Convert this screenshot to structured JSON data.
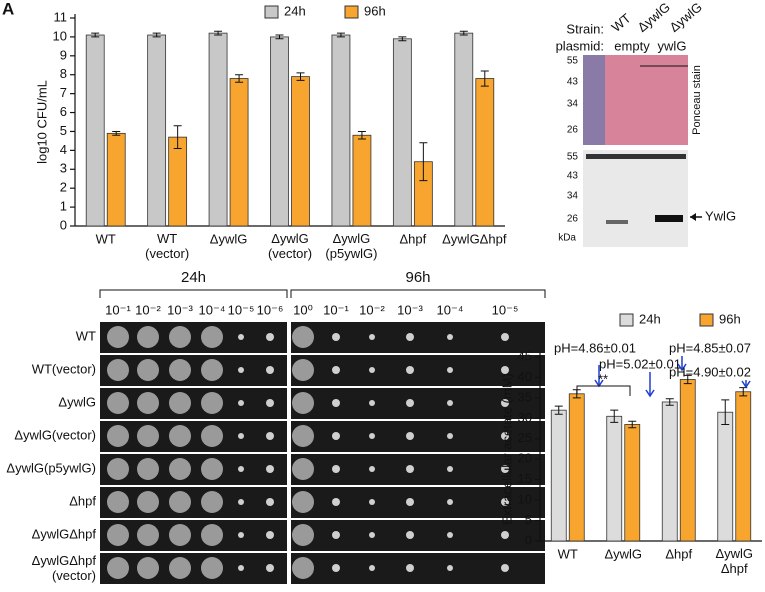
{
  "panel_labels": [
    "A"
  ],
  "chart_data": [
    {
      "type": "bar",
      "y_label": "log10 CFU/mL",
      "categories": [
        "WT",
        "WT\n(vector)",
        "ΔywlG",
        "ΔywlG\n(vector)",
        "ΔywlG\n(p5ywlG)",
        "Δhpf",
        "ΔywlGΔhpf"
      ],
      "series": [
        {
          "name": "24h",
          "color": "#c8c8c8",
          "values": [
            10.1,
            10.1,
            10.2,
            10.0,
            10.1,
            9.9,
            10.2
          ],
          "errors": [
            0.1,
            0.1,
            0.1,
            0.1,
            0.1,
            0.1,
            0.1
          ]
        },
        {
          "name": "96h",
          "color": "#f7a52f",
          "values": [
            4.9,
            4.7,
            7.8,
            7.9,
            4.8,
            3.4,
            7.8
          ],
          "errors": [
            0.1,
            0.6,
            0.2,
            0.2,
            0.2,
            1.0,
            0.4
          ]
        }
      ],
      "ylim": [
        0,
        11
      ],
      "yticks": [
        0,
        1,
        2,
        3,
        4,
        5,
        6,
        7,
        8,
        9,
        10,
        11
      ],
      "legend": "top"
    },
    {
      "type": "bar",
      "y_label": "Extracellular acetate (mM)",
      "categories": [
        "WT",
        "ΔywlG",
        "Δhpf",
        "ΔywlG\nΔhpf"
      ],
      "series": [
        {
          "name": "24h",
          "color": "#dcdcdc",
          "values": [
            32,
            30.5,
            34,
            31.5
          ],
          "errors": [
            1,
            1.5,
            0.8,
            3
          ]
        },
        {
          "name": "96h",
          "color": "#f7a52f",
          "values": [
            36,
            28.5,
            39.5,
            36.5
          ],
          "errors": [
            1,
            0.8,
            1,
            1
          ]
        }
      ],
      "ylim": [
        0,
        45
      ],
      "yticks": [
        0,
        5,
        10,
        15,
        20,
        25,
        30,
        35,
        40,
        45
      ],
      "legend": "top",
      "annotations": [
        "pH=4.86±0.01",
        "pH=5.02±0.01",
        "pH=4.85±0.07",
        "pH=4.90±0.02",
        "**"
      ]
    }
  ],
  "blot": {
    "strain_label": "Strain:",
    "strains": [
      "WT",
      "ΔywlG",
      "ΔywlG"
    ],
    "plasmid_label": "plasmid:",
    "plasmids": [
      "empty",
      "ywlG"
    ],
    "top_markers": [
      "55",
      "43",
      "34",
      "26"
    ],
    "stain": "Ponceau stain",
    "bottom_markers": [
      "55",
      "43",
      "34",
      "26"
    ],
    "unit": "kDa",
    "band": "YwlG"
  },
  "spot_assay": {
    "times": [
      "24h",
      "96h"
    ],
    "dilutions": [
      [
        "10⁻¹",
        "10⁻²",
        "10⁻³",
        "10⁻⁴",
        "10⁻⁵",
        "10⁻⁶"
      ],
      [
        "10⁰",
        "10⁻¹",
        "10⁻²",
        "10⁻³",
        "10⁻⁴",
        "10⁻⁵"
      ]
    ],
    "rows": [
      "WT",
      "WT(vector)",
      "ΔywlG",
      "ΔywlG(vector)",
      "ΔywlG(p5ywlG)",
      "Δhpf",
      "ΔywlGΔhpf",
      "ΔywlGΔhpf\n(vector)"
    ]
  }
}
